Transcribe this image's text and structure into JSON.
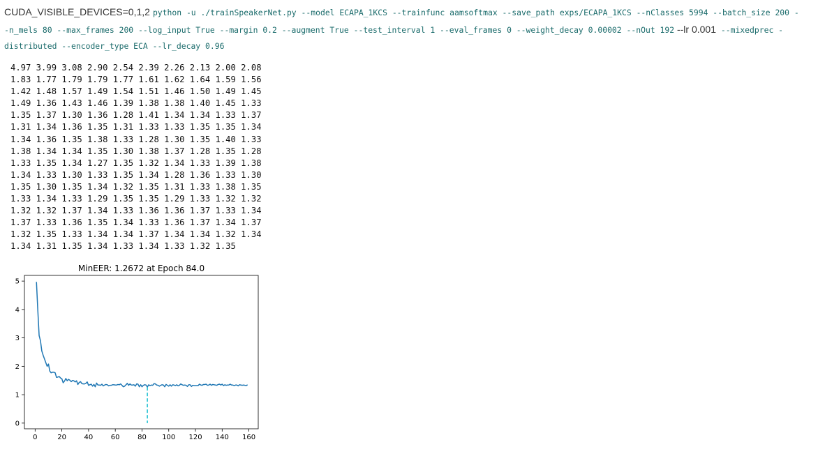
{
  "command": {
    "env": "CUDA_VISIBLE_DEVICES=0,1,2",
    "line1": "python -u ./trainSpeakerNet.py --model ECAPA_1KCS  --trainfunc aamsoftmax --save_path exps/ECAPA_1KCS --nClasses 5994 --batch_size 200 -",
    "line2a": "-n_mels 80 --max_frames 200 --log_input True --margin 0.2 --augment True --test_interval 1 --eval_frames 0 --weight_decay 0.00002 --nOut 192",
    "line2b": " --lr 0.001",
    "line2c": " --mixedprec -",
    "line3": "distributed --encoder_type ECA --lr_decay 0.96"
  },
  "printed_values": [
    "4.97 3.99 3.08 2.90 2.54 2.39 2.26 2.13 2.00 2.08",
    "1.83 1.77 1.79 1.79 1.77 1.61 1.62 1.64 1.59 1.56",
    "1.42 1.48 1.57 1.49 1.54 1.51 1.46 1.50 1.49 1.45",
    "1.49 1.36 1.43 1.46 1.39 1.38 1.38 1.40 1.45 1.33",
    "1.35 1.37 1.30 1.36 1.28 1.41 1.34 1.34 1.33 1.37",
    "1.31 1.34 1.36 1.35 1.31 1.33 1.33 1.35 1.35 1.34",
    "1.34 1.36 1.35 1.38 1.33 1.28 1.30 1.35 1.40 1.33",
    "1.38 1.34 1.34 1.35 1.30 1.38 1.37 1.28 1.35 1.28",
    "1.33 1.35 1.34 1.27 1.35 1.32 1.34 1.33 1.39 1.38",
    "1.34 1.33 1.30 1.33 1.35 1.34 1.28 1.36 1.33 1.30",
    "1.35 1.30 1.35 1.34 1.32 1.35 1.31 1.33 1.38 1.35",
    "1.33 1.34 1.33 1.29 1.35 1.35 1.29 1.33 1.32 1.32",
    "1.32 1.32 1.37 1.34 1.33 1.36 1.36 1.37 1.33 1.34",
    "1.37 1.33 1.36 1.35 1.34 1.33 1.36 1.37 1.34 1.37",
    "1.32 1.35 1.33 1.34 1.34 1.37 1.34 1.34 1.32 1.34",
    "1.34 1.31 1.35 1.34 1.33 1.34 1.33 1.32 1.35"
  ],
  "chart_data": {
    "type": "line",
    "title": "MinEER: 1.2672 at Epoch 84.0",
    "xlabel": "",
    "ylabel": "",
    "xlim": [
      -8,
      167
    ],
    "ylim": [
      -0.2,
      5.2
    ],
    "xticks": [
      0,
      20,
      40,
      60,
      80,
      100,
      120,
      140,
      160
    ],
    "yticks": [
      0,
      1,
      2,
      3,
      4,
      5
    ],
    "grid": false,
    "line_color": "#1f77b4",
    "marker_color": "#17becf",
    "series": [
      {
        "x_start": 1,
        "x_step": 1,
        "values": [
          4.97,
          3.99,
          3.08,
          2.9,
          2.54,
          2.39,
          2.26,
          2.13,
          2.0,
          2.08,
          1.83,
          1.77,
          1.79,
          1.79,
          1.77,
          1.61,
          1.62,
          1.64,
          1.59,
          1.56,
          1.42,
          1.48,
          1.57,
          1.49,
          1.54,
          1.51,
          1.46,
          1.5,
          1.49,
          1.45,
          1.49,
          1.36,
          1.43,
          1.46,
          1.39,
          1.38,
          1.38,
          1.4,
          1.45,
          1.33,
          1.35,
          1.37,
          1.3,
          1.36,
          1.28,
          1.41,
          1.34,
          1.34,
          1.33,
          1.37,
          1.31,
          1.34,
          1.36,
          1.35,
          1.31,
          1.33,
          1.33,
          1.35,
          1.35,
          1.34,
          1.34,
          1.36,
          1.35,
          1.38,
          1.33,
          1.28,
          1.3,
          1.35,
          1.4,
          1.33,
          1.38,
          1.34,
          1.34,
          1.35,
          1.3,
          1.38,
          1.37,
          1.28,
          1.35,
          1.28,
          1.33,
          1.35,
          1.34,
          1.27,
          1.35,
          1.32,
          1.34,
          1.33,
          1.39,
          1.38,
          1.34,
          1.33,
          1.3,
          1.33,
          1.35,
          1.34,
          1.28,
          1.36,
          1.33,
          1.3,
          1.35,
          1.3,
          1.35,
          1.34,
          1.32,
          1.35,
          1.31,
          1.33,
          1.38,
          1.35,
          1.33,
          1.34,
          1.33,
          1.29,
          1.35,
          1.35,
          1.29,
          1.33,
          1.32,
          1.32,
          1.32,
          1.32,
          1.37,
          1.34,
          1.33,
          1.36,
          1.36,
          1.37,
          1.33,
          1.34,
          1.37,
          1.33,
          1.36,
          1.35,
          1.34,
          1.33,
          1.36,
          1.37,
          1.34,
          1.37,
          1.32,
          1.35,
          1.33,
          1.34,
          1.34,
          1.37,
          1.34,
          1.34,
          1.32,
          1.34,
          1.34,
          1.31,
          1.35,
          1.34,
          1.33,
          1.34,
          1.33,
          1.32,
          1.35
        ]
      }
    ],
    "min_marker": {
      "x": 84,
      "y": 1.2672
    }
  }
}
